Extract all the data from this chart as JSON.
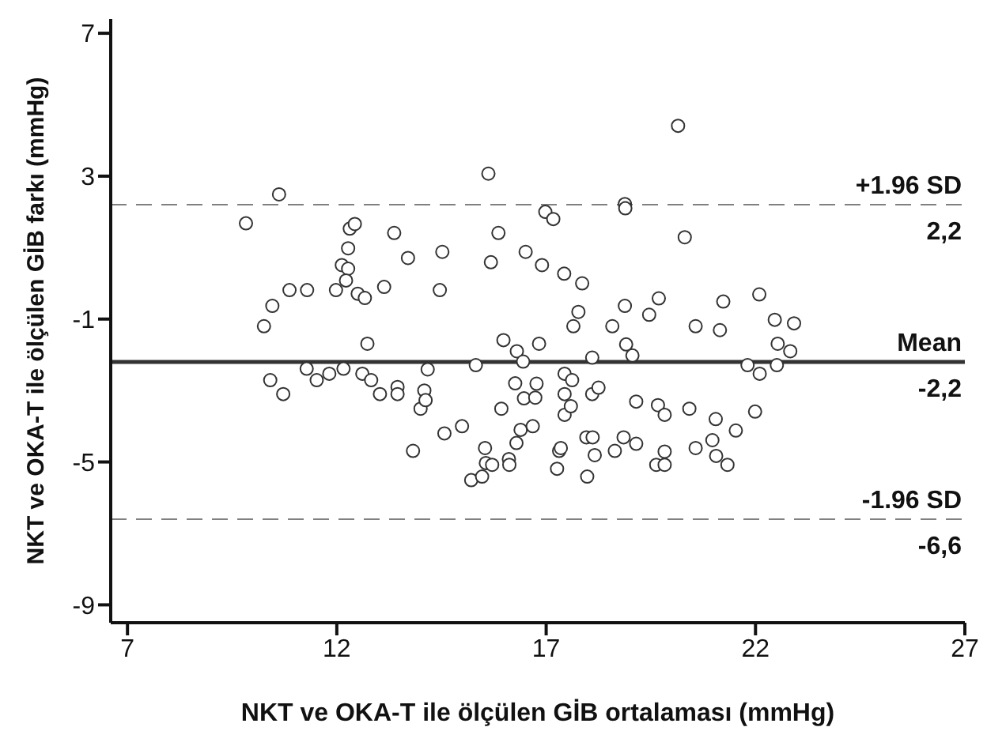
{
  "chart_data": {
    "type": "scatter",
    "xlabel": "NKT ve OKA-T ile ölçülen GİB ortalaması (mmHg)",
    "ylabel": "NKT ve OKA-T ile ölçülen GİB farkı (mmHg)",
    "xlim": [
      6.6,
      27
    ],
    "xticks": [
      7,
      12,
      17,
      22,
      27
    ],
    "ylim": [
      -9.5,
      7.4
    ],
    "yticks": [
      7,
      3,
      -1,
      -5,
      -9
    ],
    "marker": "circle",
    "series": [
      {
        "color": "#333333",
        "x": [
          9.83,
          10.62,
          10.26,
          10.46,
          10.87,
          11.29,
          10.41,
          10.72,
          11.28,
          11.52,
          11.82,
          11.98,
          12.16,
          12.12,
          12.27,
          12.22,
          12.27,
          12.31,
          12.43,
          12.5,
          12.67,
          12.73,
          12.61,
          12.82,
          13.03,
          13.13,
          13.37,
          13.45,
          13.45,
          13.7,
          13.82,
          14.0,
          14.09,
          14.12,
          14.17,
          14.46,
          14.52,
          14.57,
          14.99,
          15.21,
          15.32,
          15.47,
          15.54,
          15.56,
          15.71,
          15.62,
          15.68,
          15.86,
          15.93,
          15.98,
          16.11,
          16.12,
          16.26,
          16.29,
          16.3,
          16.39,
          16.45,
          16.47,
          16.51,
          16.68,
          16.74,
          16.77,
          16.83,
          16.9,
          16.98,
          17.17,
          17.26,
          17.31,
          17.35,
          17.43,
          17.44,
          17.44,
          17.44,
          17.59,
          17.62,
          17.65,
          17.77,
          17.86,
          17.96,
          17.98,
          18.1,
          18.1,
          18.11,
          18.16,
          18.25,
          18.58,
          18.64,
          18.85,
          18.88,
          18.89,
          18.88,
          18.91,
          19.06,
          19.15,
          19.15,
          19.46,
          19.63,
          19.67,
          19.69,
          19.83,
          19.83,
          19.83,
          20.15,
          20.31,
          20.42,
          20.57,
          20.57,
          20.97,
          21.05,
          21.06,
          21.15,
          21.23,
          21.33,
          21.53,
          21.81,
          21.99,
          22.09,
          22.1,
          22.46,
          22.51,
          22.53,
          22.83,
          22.92
        ],
        "values": [
          1.68,
          2.49,
          -1.2,
          -0.63,
          -0.19,
          -0.19,
          -2.71,
          -3.1,
          -2.39,
          -2.71,
          -2.53,
          -0.19,
          -2.39,
          0.51,
          0.41,
          0.08,
          0.98,
          1.53,
          1.66,
          -0.29,
          -0.41,
          -1.69,
          -2.53,
          -2.71,
          -3.1,
          -0.1,
          1.41,
          -2.9,
          -3.1,
          0.71,
          -4.69,
          -3.51,
          -3.0,
          -3.27,
          -2.41,
          -0.19,
          0.88,
          -4.2,
          -4.0,
          -5.51,
          -2.29,
          -5.41,
          -4.61,
          -5.03,
          -5.08,
          3.07,
          0.59,
          1.41,
          -3.51,
          -1.59,
          -4.92,
          -5.08,
          -2.8,
          -4.47,
          -1.9,
          -4.1,
          -2.19,
          -3.22,
          0.88,
          -4.0,
          -3.2,
          -2.81,
          -1.69,
          0.51,
          2.0,
          1.8,
          -5.19,
          -4.69,
          -4.61,
          0.27,
          -2.53,
          -3.1,
          -3.68,
          -3.44,
          -2.71,
          -1.2,
          -0.8,
          0.0,
          -4.31,
          -5.41,
          -2.08,
          -3.1,
          -4.31,
          -4.81,
          -2.92,
          -1.2,
          -4.69,
          -4.31,
          2.22,
          2.1,
          -0.63,
          -1.71,
          -2.02,
          -3.31,
          -4.49,
          -0.88,
          -5.08,
          -3.41,
          -0.42,
          -3.68,
          -4.71,
          -5.08,
          4.41,
          1.29,
          -3.51,
          -1.2,
          -4.61,
          -4.39,
          -3.8,
          -4.83,
          -1.31,
          -0.51,
          -5.08,
          -4.12,
          -2.29,
          -3.59,
          -0.31,
          -2.53,
          -1.02,
          -2.29,
          -1.69,
          -1.9,
          -1.12
        ]
      }
    ],
    "ref_lines": [
      {
        "axis": "y",
        "value": 2.2,
        "label": "+1.96 SD\n2,2",
        "color": "#808080",
        "line_style": "dashed"
      },
      {
        "axis": "y",
        "value": -2.2,
        "label": "Mean\n-2,2",
        "color": "#333333",
        "line_style": "solid"
      },
      {
        "axis": "y",
        "value": -6.6,
        "label": "-1.96 SD\n-6,6",
        "color": "#808080",
        "line_style": "dashed"
      }
    ]
  }
}
